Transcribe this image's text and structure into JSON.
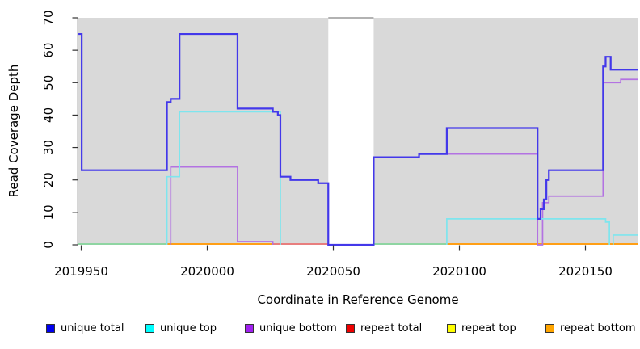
{
  "figure": {
    "background": "#FFFFFF",
    "plot_background": "#D9D9D9",
    "axis_color": "#333333",
    "gap_border_color": "#999999"
  },
  "chart_data": {
    "type": "line",
    "subtype": "step-after",
    "title": "",
    "xlabel": "Coordinate in Reference Genome",
    "ylabel": "Read Coverage Depth",
    "xlim": [
      2019948.9,
      2020170.9
    ],
    "ylim": [
      0,
      70
    ],
    "xticks": [
      2019950,
      2020000,
      2020050,
      2020100,
      2020150
    ],
    "yticks": [
      0,
      10,
      20,
      30,
      40,
      50,
      60,
      70
    ],
    "grid": false,
    "legend_position": "bottom",
    "gap": {
      "from": 2020048,
      "to": 2020066
    },
    "series": [
      {
        "name": "unique total",
        "legend_color": "#0000EE",
        "line_color": "#4338EA",
        "width": 2.2,
        "paths": [
          {
            "points": [
              [
                2019948.9,
                65
              ],
              [
                2019950.2,
                23
              ],
              [
                2019984,
                44
              ],
              [
                2019985.5,
                45
              ],
              [
                2019989,
                65
              ],
              [
                2020012,
                42
              ],
              [
                2020026,
                41
              ],
              [
                2020028,
                40
              ],
              [
                2020029,
                21
              ],
              [
                2020033,
                20
              ],
              [
                2020044,
                19
              ],
              [
                2020048,
                0
              ],
              [
                2020066,
                27
              ],
              [
                2020084,
                28
              ],
              [
                2020095,
                36
              ],
              [
                2020131,
                8
              ],
              [
                2020132.2,
                11
              ],
              [
                2020133.5,
                14
              ],
              [
                2020134.5,
                20
              ],
              [
                2020135.5,
                23
              ],
              [
                2020157,
                55
              ],
              [
                2020158,
                58
              ],
              [
                2020160,
                54
              ]
            ],
            "end": 2020170.9
          }
        ]
      },
      {
        "name": "unique top",
        "legend_color": "#00FFFF",
        "line_color": "#7EE5EE",
        "width": 1.7,
        "paths": [
          {
            "points": [
              [
                2019984,
                0
              ],
              [
                2019984,
                21
              ],
              [
                2019989,
                41
              ],
              [
                2020029,
                41
              ],
              [
                2020029,
                0
              ]
            ],
            "end": 2020029
          },
          {
            "points": [
              [
                2020095,
                0
              ],
              [
                2020095,
                8
              ],
              [
                2020158,
                7
              ],
              [
                2020159.5,
                0
              ]
            ],
            "end": 2020159.5
          },
          {
            "points": [
              [
                2020161,
                0
              ],
              [
                2020161,
                3
              ]
            ],
            "end": 2020170.9
          }
        ]
      },
      {
        "name": "unique bottom",
        "legend_color": "#A020F0",
        "line_color": "#B372E2",
        "width": 1.7,
        "paths": [
          {
            "points": [
              [
                2019985.5,
                0
              ],
              [
                2019985.5,
                24
              ],
              [
                2020012,
                1
              ],
              [
                2020026,
                0
              ]
            ],
            "end": 2020026
          },
          {
            "points": [
              [
                2020066,
                0
              ],
              [
                2020066,
                27
              ],
              [
                2020084,
                28
              ],
              [
                2020131,
                0
              ],
              [
                2020133,
                13
              ],
              [
                2020135.5,
                15
              ],
              [
                2020157,
                50
              ],
              [
                2020164,
                51
              ]
            ],
            "end": 2020170.9
          }
        ]
      },
      {
        "name": "repeat total",
        "legend_color": "#EE0000",
        "line_color": "#E87E7E",
        "width": 2,
        "paths": []
      },
      {
        "name": "repeat top",
        "legend_color": "#FFFF00",
        "line_color": "#F5E97E",
        "width": 2,
        "paths": []
      },
      {
        "name": "repeat bottom",
        "legend_color": "#FFA500",
        "line_color": "#FF9F16",
        "width": 2,
        "paths": []
      }
    ],
    "baseline_segments": [
      {
        "from": 2019948.9,
        "to": 2019984,
        "color": "#8FD5A2"
      },
      {
        "from": 2019984,
        "to": 2020026,
        "color": "#FF9F16"
      },
      {
        "from": 2020026,
        "to": 2020048,
        "color": "#E87E7E"
      },
      {
        "from": 2020066,
        "to": 2020095,
        "color": "#8FD5A2"
      },
      {
        "from": 2020095,
        "to": 2020170.9,
        "color": "#FF9F16"
      }
    ]
  }
}
